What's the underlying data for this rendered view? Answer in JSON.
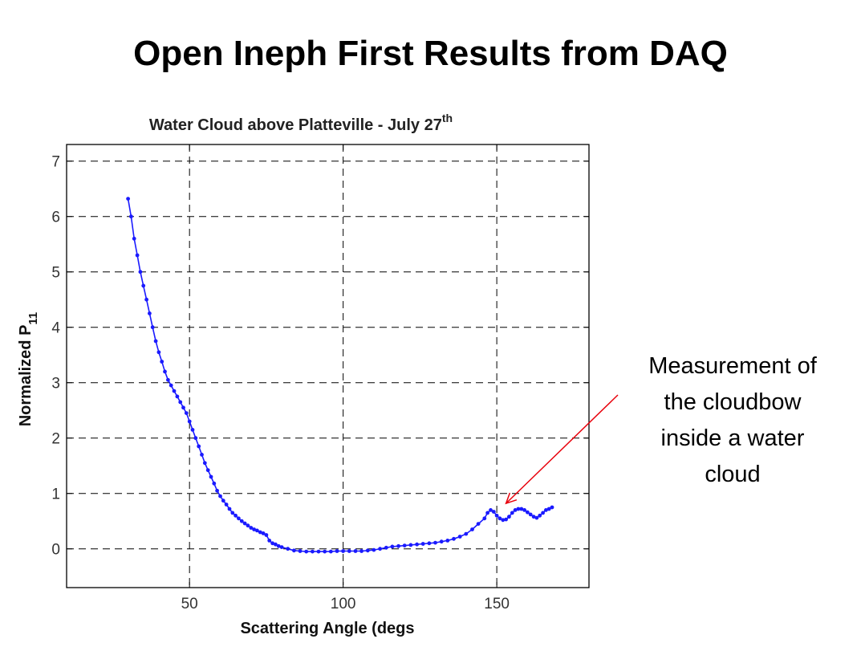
{
  "slide": {
    "title": "Open Ineph First Results from DAQ",
    "annotation_lines": [
      "Measurement of",
      "the cloudbow",
      "inside a water",
      "cloud"
    ],
    "annotation_color": "#e8000b"
  },
  "chart_data": {
    "type": "line",
    "title": "Water Cloud above Platteville - July 27",
    "title_superscript": "th",
    "xlabel": "Scattering Angle (degs",
    "ylabel": "Normalized P",
    "ylabel_subscript": "11",
    "xlim": [
      10,
      180
    ],
    "ylim": [
      -0.7,
      7.3
    ],
    "xticks": [
      50,
      100,
      150
    ],
    "yticks": [
      0,
      1,
      2,
      3,
      4,
      5,
      6,
      7
    ],
    "grid": true,
    "grid_style": "dashed",
    "marker": "dot",
    "series_color": "#1a1aff",
    "series": [
      {
        "x": [
          30,
          31,
          32,
          33,
          34,
          35,
          36,
          37,
          38,
          39,
          40,
          41,
          42,
          43,
          44,
          45,
          46,
          47,
          48,
          49,
          50,
          51,
          52,
          53,
          54,
          55,
          56,
          57,
          58,
          59,
          60,
          61,
          62,
          63,
          64,
          65,
          66,
          67,
          68,
          69,
          70,
          71,
          72,
          73,
          74,
          75,
          76,
          77,
          78,
          79,
          80,
          82,
          84,
          86,
          88,
          90,
          92,
          94,
          96,
          98,
          100,
          102,
          104,
          106,
          108,
          110,
          112,
          114,
          116,
          118,
          120,
          122,
          124,
          126,
          128,
          130,
          132,
          134,
          136,
          138,
          140,
          142,
          144,
          146,
          147,
          148,
          149,
          150,
          151,
          152,
          153,
          154,
          155,
          156,
          157,
          158,
          159,
          160,
          161,
          162,
          163,
          164,
          165,
          166,
          167,
          168
        ],
        "y": [
          6.32,
          6.0,
          5.6,
          5.3,
          5.0,
          4.75,
          4.5,
          4.25,
          4.0,
          3.75,
          3.55,
          3.38,
          3.2,
          3.05,
          2.95,
          2.85,
          2.75,
          2.65,
          2.55,
          2.45,
          2.3,
          2.15,
          2.0,
          1.85,
          1.7,
          1.55,
          1.42,
          1.3,
          1.18,
          1.05,
          0.95,
          0.87,
          0.8,
          0.72,
          0.65,
          0.6,
          0.55,
          0.5,
          0.46,
          0.42,
          0.38,
          0.35,
          0.33,
          0.3,
          0.28,
          0.25,
          0.15,
          0.1,
          0.08,
          0.05,
          0.03,
          0.0,
          -0.03,
          -0.04,
          -0.05,
          -0.05,
          -0.05,
          -0.05,
          -0.05,
          -0.04,
          -0.04,
          -0.04,
          -0.04,
          -0.04,
          -0.03,
          -0.02,
          0.0,
          0.02,
          0.04,
          0.05,
          0.06,
          0.07,
          0.08,
          0.09,
          0.1,
          0.11,
          0.13,
          0.15,
          0.18,
          0.22,
          0.27,
          0.35,
          0.45,
          0.55,
          0.65,
          0.7,
          0.67,
          0.6,
          0.55,
          0.52,
          0.53,
          0.58,
          0.65,
          0.7,
          0.72,
          0.72,
          0.7,
          0.66,
          0.62,
          0.58,
          0.56,
          0.6,
          0.65,
          0.7,
          0.72,
          0.75
        ]
      }
    ],
    "annotation_arrow_target": {
      "x": 153,
      "y": 0.82
    }
  }
}
